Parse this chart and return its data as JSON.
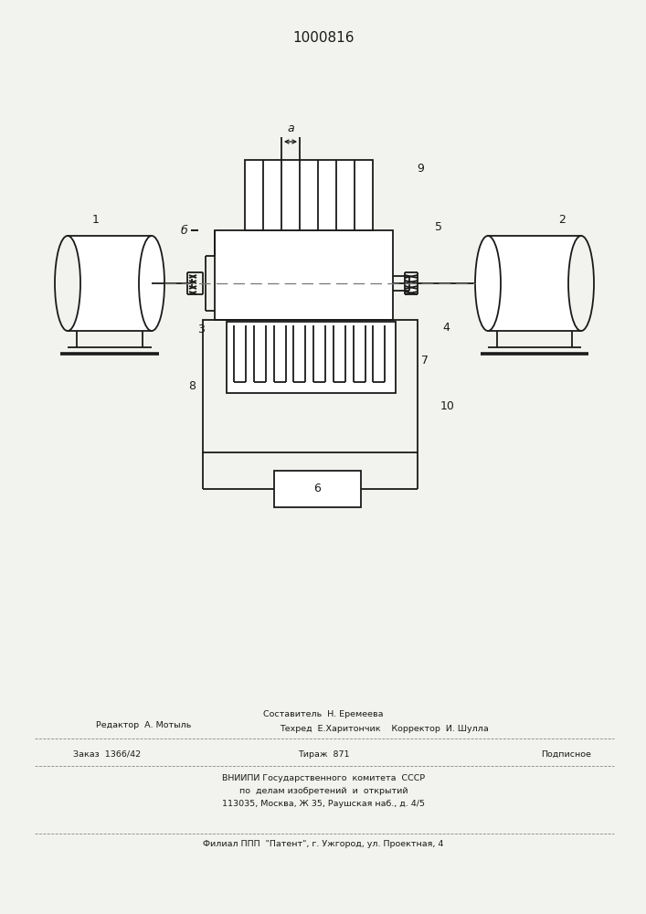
{
  "title": "1000816",
  "bg_color": "#f2f2ee",
  "line_color": "#1a1a1a",
  "lw": 1.3,
  "footer": {
    "editor": "Редактор  А. Мотыль",
    "compiler": "Составитель  Н. Еремеева",
    "techred": "Техред  Е.Харитончик    Корректор  И. Шулла",
    "order": "Заказ  1366/42",
    "tirazh": "Тираж  871",
    "podpis": "Подписное",
    "vnipi1": "ВНИИПИ Государственного  комитета  СССР",
    "vnipi2": "по  делам изобретений  и  открытий",
    "vnipi3": "113035, Москва, Ж 35, Раушская наб., д. 4/5",
    "filial": "Филиал ППП  \"Патент\", г. Ужгород, ул. Проектная, 4"
  }
}
